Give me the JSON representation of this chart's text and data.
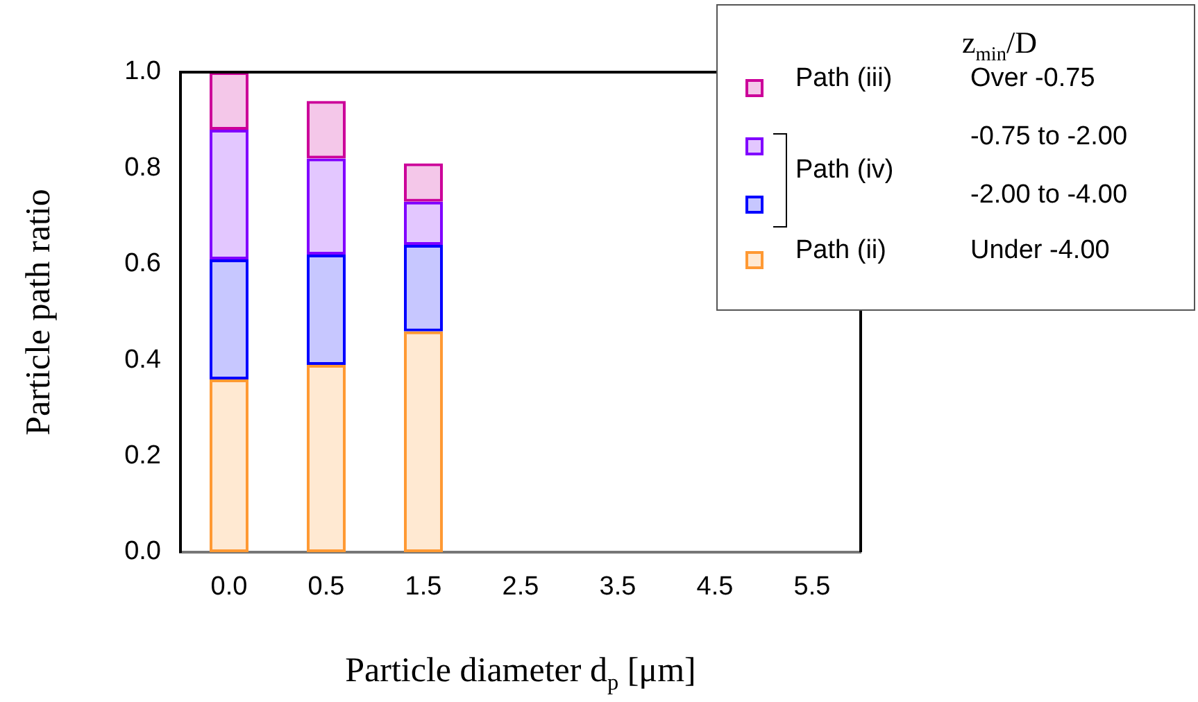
{
  "chart_data": {
    "type": "bar",
    "stacked": true,
    "xlabel": "Particle diameter d$_{p}$ [μm]",
    "ylabel": "Particle path ratio",
    "categories": [
      "0.0",
      "0.5",
      "1.5",
      "2.5",
      "3.5",
      "4.5",
      "5.5"
    ],
    "series": [
      {
        "name": "Under -4.00",
        "color": "#ff9933",
        "values": [
          0.36,
          0.39,
          0.46,
          null,
          null,
          null,
          null
        ]
      },
      {
        "name": "-2.00 to -4.00",
        "color": "#0000ff",
        "values": [
          0.25,
          0.23,
          0.18,
          null,
          null,
          null,
          null
        ]
      },
      {
        "name": "-0.75 to -2.00",
        "color": "#8000ff",
        "values": [
          0.27,
          0.2,
          0.09,
          null,
          null,
          null,
          null
        ]
      },
      {
        "name": "Over -0.75",
        "color": "#cc0099",
        "values": [
          0.12,
          0.12,
          0.08,
          null,
          null,
          null,
          null
        ]
      }
    ],
    "ylim": [
      0,
      1
    ],
    "yticks": [
      {
        "value": 0,
        "label": "0.0"
      },
      {
        "value": 0.2,
        "label": "0.2"
      },
      {
        "value": 0.4,
        "label": "0.4"
      },
      {
        "value": 0.6,
        "label": "0.6"
      },
      {
        "value": 0.8,
        "label": "0.8"
      },
      {
        "value": 1,
        "label": "1.0"
      }
    ],
    "grid": false,
    "legend": "top right",
    "legend_title": "z$_{min}$/D",
    "annotations": [
      "Path (ii)",
      "Path (iv)",
      "Path (iii)"
    ]
  }
}
